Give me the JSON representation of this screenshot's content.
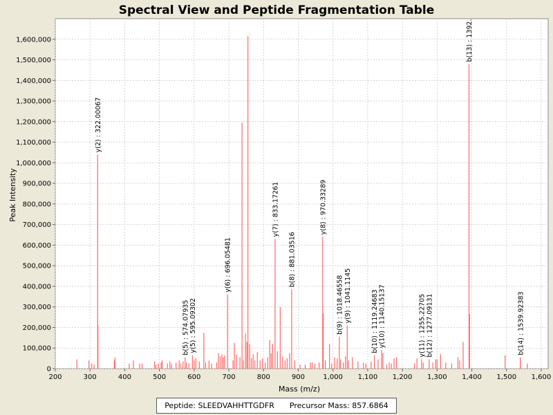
{
  "chart_data": {
    "type": "bar",
    "title": "Spectral View and Peptide Fragmentation Table",
    "xlabel": "Mass (m/z)",
    "ylabel": "Peak Intensity",
    "xlim": [
      200,
      1620
    ],
    "ylim": [
      0,
      1700000
    ],
    "xticks": [
      200,
      300,
      400,
      500,
      600,
      700,
      800,
      900,
      1000,
      1100,
      1200,
      1300,
      1400,
      1500,
      1600
    ],
    "xtick_labels": [
      "200",
      "300",
      "400",
      "500",
      "600",
      "700",
      "800",
      "900",
      "1,000",
      "1,100",
      "1,200",
      "1,300",
      "1,400",
      "1,500",
      "1,600"
    ],
    "yticks": [
      0,
      100000,
      200000,
      300000,
      400000,
      500000,
      600000,
      700000,
      800000,
      900000,
      1000000,
      1100000,
      1200000,
      1300000,
      1400000,
      1500000,
      1600000
    ],
    "ytick_labels": [
      "0",
      "100,000",
      "200,000",
      "300,000",
      "400,000",
      "500,000",
      "600,000",
      "700,000",
      "800,000",
      "900,000",
      "1,000,000",
      "1,100,000",
      "1,200,000",
      "1,300,000",
      "1,400,000",
      "1,500,000",
      "1,600,000"
    ],
    "grid": true,
    "bar_color": "#FF6666",
    "peaks": [
      [
        262,
        45000
      ],
      [
        297,
        40000
      ],
      [
        305,
        25000
      ],
      [
        312,
        20000
      ],
      [
        322.00067,
        1040000
      ],
      [
        323,
        210000
      ],
      [
        370,
        40000
      ],
      [
        372,
        55000
      ],
      [
        413,
        25000
      ],
      [
        425,
        40000
      ],
      [
        443,
        25000
      ],
      [
        450,
        25000
      ],
      [
        486,
        35000
      ],
      [
        490,
        20000
      ],
      [
        497,
        25000
      ],
      [
        505,
        30000
      ],
      [
        508,
        40000
      ],
      [
        523,
        25000
      ],
      [
        530,
        35000
      ],
      [
        535,
        25000
      ],
      [
        548,
        30000
      ],
      [
        557,
        40000
      ],
      [
        562,
        25000
      ],
      [
        568,
        35000
      ],
      [
        574.07935,
        55000
      ],
      [
        578,
        30000
      ],
      [
        585,
        25000
      ],
      [
        595.09302,
        65000
      ],
      [
        600,
        40000
      ],
      [
        605,
        50000
      ],
      [
        615,
        35000
      ],
      [
        628,
        175000
      ],
      [
        633,
        30000
      ],
      [
        643,
        40000
      ],
      [
        650,
        25000
      ],
      [
        665,
        30000
      ],
      [
        670,
        75000
      ],
      [
        675,
        60000
      ],
      [
        680,
        70000
      ],
      [
        684,
        55000
      ],
      [
        688,
        65000
      ],
      [
        696.05481,
        360000
      ],
      [
        712,
        40000
      ],
      [
        716,
        125000
      ],
      [
        722,
        70000
      ],
      [
        732,
        55000
      ],
      [
        738,
        1195000
      ],
      [
        742,
        40000
      ],
      [
        748,
        170000
      ],
      [
        752,
        130000
      ],
      [
        755,
        1615000
      ],
      [
        760,
        120000
      ],
      [
        765,
        50000
      ],
      [
        770,
        70000
      ],
      [
        775,
        40000
      ],
      [
        782,
        80000
      ],
      [
        790,
        40000
      ],
      [
        797,
        50000
      ],
      [
        805,
        30000
      ],
      [
        812,
        55000
      ],
      [
        818,
        140000
      ],
      [
        822,
        75000
      ],
      [
        826,
        120000
      ],
      [
        833.17261,
        630000
      ],
      [
        840,
        85000
      ],
      [
        848,
        300000
      ],
      [
        855,
        60000
      ],
      [
        862,
        40000
      ],
      [
        868,
        50000
      ],
      [
        875,
        75000
      ],
      [
        881.03516,
        385000
      ],
      [
        890,
        40000
      ],
      [
        905,
        20000
      ],
      [
        920,
        20000
      ],
      [
        935,
        30000
      ],
      [
        940,
        30000
      ],
      [
        948,
        25000
      ],
      [
        960,
        30000
      ],
      [
        970.33289,
        640000
      ],
      [
        972,
        270000
      ],
      [
        978,
        40000
      ],
      [
        990,
        120000
      ],
      [
        996,
        25000
      ],
      [
        1005,
        55000
      ],
      [
        1012,
        50000
      ],
      [
        1018.46558,
        155000
      ],
      [
        1022,
        45000
      ],
      [
        1030,
        30000
      ],
      [
        1036,
        60000
      ],
      [
        1041.1145,
        210000
      ],
      [
        1045,
        40000
      ],
      [
        1056,
        55000
      ],
      [
        1072,
        35000
      ],
      [
        1088,
        30000
      ],
      [
        1095,
        25000
      ],
      [
        1110,
        35000
      ],
      [
        1119.24683,
        65000
      ],
      [
        1130,
        45000
      ],
      [
        1140.15137,
        90000
      ],
      [
        1144,
        75000
      ],
      [
        1155,
        20000
      ],
      [
        1162,
        30000
      ],
      [
        1168,
        25000
      ],
      [
        1176,
        50000
      ],
      [
        1183,
        55000
      ],
      [
        1235,
        25000
      ],
      [
        1242,
        50000
      ],
      [
        1255.22705,
        45000
      ],
      [
        1260,
        30000
      ],
      [
        1277.09131,
        45000
      ],
      [
        1288,
        30000
      ],
      [
        1296,
        45000
      ],
      [
        1300,
        45000
      ],
      [
        1310,
        70000
      ],
      [
        1325,
        30000
      ],
      [
        1342,
        25000
      ],
      [
        1360,
        55000
      ],
      [
        1365,
        40000
      ],
      [
        1375,
        130000
      ],
      [
        1392,
        1480000
      ],
      [
        1393.5,
        265000
      ],
      [
        1496,
        65000
      ],
      [
        1540,
        50000
      ],
      [
        1539.92383,
        55000
      ],
      [
        1560,
        25000
      ]
    ],
    "annotations": [
      {
        "label": "y(2) : 322.00067",
        "mz": 322.00067,
        "intensity": 1040000
      },
      {
        "label": "b(5) : 574.07935",
        "mz": 574.07935,
        "intensity": 55000
      },
      {
        "label": "y(5) : 595.09302",
        "mz": 595.09302,
        "intensity": 65000
      },
      {
        "label": "y(6) : 696.05481",
        "mz": 696.05481,
        "intensity": 360000
      },
      {
        "label": "y(7) : 833.17261",
        "mz": 833.17261,
        "intensity": 630000
      },
      {
        "label": "b(8) : 881.03516",
        "mz": 881.03516,
        "intensity": 385000
      },
      {
        "label": "y(8) : 970.33289",
        "mz": 970.33289,
        "intensity": 640000
      },
      {
        "label": "b(9) : 1018.46558",
        "mz": 1018.46558,
        "intensity": 155000
      },
      {
        "label": "y(9) : 1041.1145",
        "mz": 1041.1145,
        "intensity": 210000
      },
      {
        "label": "b(10) : 1119.24683",
        "mz": 1119.24683,
        "intensity": 65000
      },
      {
        "label": "y(10) : 1140.15137",
        "mz": 1140.15137,
        "intensity": 90000
      },
      {
        "label": "y(11) : 1255.22705",
        "mz": 1255.22705,
        "intensity": 45000
      },
      {
        "label": "b(12) : 1277.09131",
        "mz": 1277.09131,
        "intensity": 45000
      },
      {
        "label": "b(13) : 1392.",
        "mz": 1392,
        "intensity": 1480000
      },
      {
        "label": "b(14) : 1539.92383",
        "mz": 1539.92383,
        "intensity": 55000
      }
    ]
  },
  "footer": {
    "peptide": "Peptide: SLEEDVAHHTTGDFR",
    "precursor": "Precursor Mass: 857.6864"
  }
}
